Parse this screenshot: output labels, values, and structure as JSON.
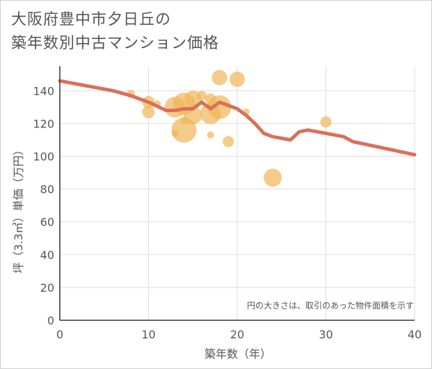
{
  "title": {
    "line1": "大阪府豊中市夕日丘の",
    "line2": "築年数別中古マンション価格"
  },
  "note": "円の大きさは、取引のあった物件面積を示す",
  "chart_data": {
    "type": "scatter",
    "title": "大阪府豊中市夕日丘の築年数別中古マンション価格",
    "xlabel": "築年数（年）",
    "ylabel": "坪（3.3㎡）単価（万円）",
    "xlim": [
      0,
      40
    ],
    "ylim": [
      0,
      155
    ],
    "xticks": [
      0,
      10,
      20,
      30,
      40
    ],
    "yticks": [
      0,
      20,
      40,
      60,
      80,
      100,
      120,
      140
    ],
    "grid": true,
    "colors": {
      "bubble": "#f0b555",
      "trend": "#d9705a",
      "axis": "#333333",
      "grid": "#dddddd",
      "text": "#555555"
    },
    "bubbles": [
      {
        "x": 8,
        "y": 138,
        "size": 6
      },
      {
        "x": 10,
        "y": 133,
        "size": 9
      },
      {
        "x": 10,
        "y": 127,
        "size": 9
      },
      {
        "x": 11,
        "y": 132,
        "size": 5
      },
      {
        "x": 13,
        "y": 130,
        "size": 15
      },
      {
        "x": 13,
        "y": 114,
        "size": 5
      },
      {
        "x": 14,
        "y": 132,
        "size": 16
      },
      {
        "x": 14,
        "y": 116,
        "size": 18
      },
      {
        "x": 14,
        "y": 122,
        "size": 5
      },
      {
        "x": 15,
        "y": 135,
        "size": 12
      },
      {
        "x": 15,
        "y": 125,
        "size": 13
      },
      {
        "x": 16,
        "y": 137,
        "size": 7
      },
      {
        "x": 17,
        "y": 135,
        "size": 8
      },
      {
        "x": 17,
        "y": 126,
        "size": 15
      },
      {
        "x": 17,
        "y": 113,
        "size": 5
      },
      {
        "x": 18,
        "y": 148,
        "size": 11
      },
      {
        "x": 18,
        "y": 130,
        "size": 17
      },
      {
        "x": 19,
        "y": 109,
        "size": 8
      },
      {
        "x": 20,
        "y": 147,
        "size": 11
      },
      {
        "x": 21,
        "y": 127,
        "size": 5
      },
      {
        "x": 24,
        "y": 87,
        "size": 13
      },
      {
        "x": 30,
        "y": 121,
        "size": 8
      }
    ],
    "trend": {
      "x": [
        0,
        6,
        8,
        10,
        12,
        13,
        14,
        15,
        16,
        17,
        18,
        19,
        20,
        21,
        22,
        23,
        24,
        25,
        26,
        27,
        28,
        29,
        30,
        31,
        32,
        33,
        40
      ],
      "y": [
        146,
        140,
        137,
        133,
        128,
        128,
        129,
        129,
        133,
        129,
        133,
        131,
        129,
        125,
        120,
        114,
        112,
        111,
        110,
        115,
        116,
        115,
        114,
        113,
        112,
        109,
        101
      ]
    }
  }
}
